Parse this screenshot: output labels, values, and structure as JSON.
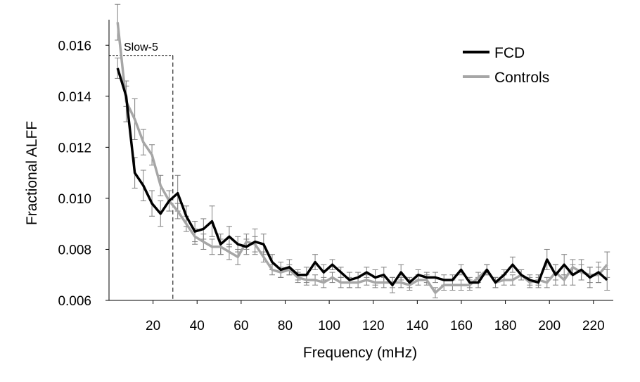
{
  "colors": {
    "fcd": "#000000",
    "controls": "#a6a6a6",
    "errorbar": "#7f7f7f",
    "axis": "#000000"
  },
  "chart_data": {
    "type": "line",
    "title": "",
    "xlabel": "Frequency (mHz)",
    "ylabel": "Fractional ALFF",
    "xlim": [
      0,
      229
    ],
    "ylim": [
      0.006,
      0.017
    ],
    "xticks": [
      20,
      40,
      60,
      80,
      100,
      120,
      140,
      160,
      180,
      200,
      220
    ],
    "xtick_labels": [
      "20",
      "40",
      "60",
      "80",
      "100",
      "120",
      "140",
      "160",
      "180",
      "200",
      "220"
    ],
    "yticks": [
      0.006,
      0.008,
      0.01,
      0.012,
      0.014,
      0.016
    ],
    "ytick_labels": [
      "0.006",
      "0.008",
      "0.010",
      "0.012",
      "0.014",
      "0.016"
    ],
    "legend_position": "top-right",
    "annotations": [
      {
        "text": "Slow-5",
        "x_start": 0,
        "x_end": 29,
        "y_top": 0.0156
      }
    ],
    "x": [
      3.9,
      7.8,
      11.7,
      15.6,
      19.5,
      23.4,
      27.3,
      31.2,
      35.1,
      39,
      42.9,
      46.8,
      50.7,
      54.6,
      58.5,
      62.4,
      66.3,
      70.2,
      74.1,
      78,
      81.9,
      85.8,
      89.7,
      93.6,
      97.5,
      101.4,
      105.3,
      109.2,
      113.1,
      117,
      120.9,
      124.8,
      128.7,
      132.6,
      136.5,
      140.4,
      144.3,
      148.2,
      152.1,
      156,
      159.9,
      163.8,
      167.7,
      171.6,
      175.5,
      179.4,
      183.3,
      187.2,
      191.1,
      195,
      198.9,
      202.8,
      206.7,
      210.6,
      214.5,
      218.4,
      222.3,
      226.2
    ],
    "series": [
      {
        "name": "FCD",
        "values": [
          0.0151,
          0.014,
          0.011,
          0.0105,
          0.0098,
          0.0094,
          0.0099,
          0.0102,
          0.0093,
          0.0087,
          0.0088,
          0.0091,
          0.0082,
          0.0085,
          0.0082,
          0.0081,
          0.0083,
          0.0082,
          0.0075,
          0.0072,
          0.0073,
          0.007,
          0.007,
          0.0075,
          0.0071,
          0.0074,
          0.0071,
          0.0068,
          0.0069,
          0.0071,
          0.0069,
          0.007,
          0.0066,
          0.0071,
          0.0067,
          0.007,
          0.0069,
          0.0069,
          0.0068,
          0.0068,
          0.0072,
          0.0067,
          0.0067,
          0.0072,
          0.0067,
          0.007,
          0.0074,
          0.007,
          0.0068,
          0.0067,
          0.0076,
          0.007,
          0.0074,
          0.007,
          0.0072,
          0.0069,
          0.0071,
          0.0068
        ],
        "errors": [
          0.0004,
          0.0004,
          0.0006,
          0.0006,
          0.0005,
          0.0005,
          0.0004,
          0.0007,
          0.0004,
          0.0004,
          0.0004,
          0.0006,
          0.0004,
          0.0004,
          0.0003,
          0.0003,
          0.0005,
          0.0004,
          0.0003,
          0.0003,
          0.0003,
          0.0002,
          0.0003,
          0.0003,
          0.0003,
          0.0002,
          0.0002,
          0.0003,
          0.0002,
          0.0002,
          0.0003,
          0.0003,
          0.0003,
          0.0003,
          0.0002,
          0.0002,
          0.0002,
          0.0002,
          0.0002,
          0.0002,
          0.0002,
          0.0002,
          0.0002,
          0.0002,
          0.0002,
          0.0002,
          0.0003,
          0.0002,
          0.0002,
          0.0002,
          0.0004,
          0.0004,
          0.0004,
          0.0004,
          0.0004,
          0.0004,
          0.0004,
          0.0004
        ]
      },
      {
        "name": "Controls",
        "values": [
          0.0169,
          0.0138,
          0.0131,
          0.0122,
          0.0117,
          0.0105,
          0.0099,
          0.0095,
          0.009,
          0.0085,
          0.0083,
          0.0081,
          0.0081,
          0.0079,
          0.0077,
          0.0083,
          0.0082,
          0.0077,
          0.0072,
          0.0071,
          0.0072,
          0.0069,
          0.0068,
          0.0068,
          0.0067,
          0.0069,
          0.0067,
          0.0067,
          0.0067,
          0.0068,
          0.0067,
          0.0067,
          0.0067,
          0.0067,
          0.0066,
          0.0068,
          0.0068,
          0.0063,
          0.0066,
          0.0066,
          0.0066,
          0.0066,
          0.0069,
          0.0072,
          0.0067,
          0.0068,
          0.0068,
          0.007,
          0.0067,
          0.0068,
          0.0067,
          0.0071,
          0.0068,
          0.0073,
          0.0071,
          0.007,
          0.007,
          0.0074
        ],
        "errors": [
          0.0007,
          0.0008,
          0.0008,
          0.0005,
          0.0004,
          0.0004,
          0.0004,
          0.0003,
          0.0003,
          0.0003,
          0.0003,
          0.0003,
          0.0003,
          0.0003,
          0.0003,
          0.0003,
          0.0003,
          0.0002,
          0.0002,
          0.0002,
          0.0002,
          0.0002,
          0.0002,
          0.0002,
          0.0002,
          0.0002,
          0.0002,
          0.0002,
          0.0002,
          0.0002,
          0.0002,
          0.0002,
          0.0002,
          0.0002,
          0.0002,
          0.0002,
          0.0002,
          0.0002,
          0.0002,
          0.0002,
          0.0002,
          0.0002,
          0.0002,
          0.0002,
          0.0002,
          0.0002,
          0.0002,
          0.0002,
          0.0002,
          0.0002,
          0.0002,
          0.0003,
          0.0002,
          0.0003,
          0.0003,
          0.0003,
          0.0003,
          0.0005
        ]
      }
    ]
  }
}
